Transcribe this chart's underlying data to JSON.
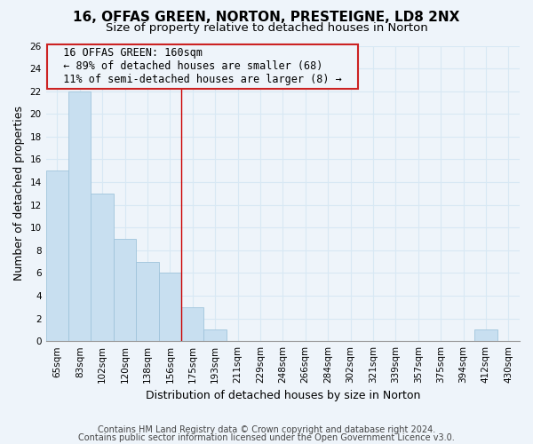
{
  "title": "16, OFFAS GREEN, NORTON, PRESTEIGNE, LD8 2NX",
  "subtitle": "Size of property relative to detached houses in Norton",
  "xlabel": "Distribution of detached houses by size in Norton",
  "ylabel": "Number of detached properties",
  "bar_color": "#c8dff0",
  "bar_edge_color": "#a0c4dc",
  "vline_color": "#cc0000",
  "vline_x_index": 5,
  "categories": [
    "65sqm",
    "83sqm",
    "102sqm",
    "120sqm",
    "138sqm",
    "156sqm",
    "175sqm",
    "193sqm",
    "211sqm",
    "229sqm",
    "248sqm",
    "266sqm",
    "284sqm",
    "302sqm",
    "321sqm",
    "339sqm",
    "357sqm",
    "375sqm",
    "394sqm",
    "412sqm",
    "430sqm"
  ],
  "values": [
    15,
    22,
    13,
    9,
    7,
    6,
    3,
    1,
    0,
    0,
    0,
    0,
    0,
    0,
    0,
    0,
    0,
    0,
    0,
    1,
    0
  ],
  "ylim": [
    0,
    26
  ],
  "yticks": [
    0,
    2,
    4,
    6,
    8,
    10,
    12,
    14,
    16,
    18,
    20,
    22,
    24,
    26
  ],
  "annotation_title": "16 OFFAS GREEN: 160sqm",
  "annotation_line1": "← 89% of detached houses are smaller (68)",
  "annotation_line2": "11% of semi-detached houses are larger (8) →",
  "footnote1": "Contains HM Land Registry data © Crown copyright and database right 2024.",
  "footnote2": "Contains public sector information licensed under the Open Government Licence v3.0.",
  "background_color": "#eef4fa",
  "grid_color": "#d8e8f4",
  "title_fontsize": 11,
  "subtitle_fontsize": 9.5,
  "axis_label_fontsize": 9,
  "tick_fontsize": 7.5,
  "annotation_fontsize": 8.5,
  "footnote_fontsize": 7
}
